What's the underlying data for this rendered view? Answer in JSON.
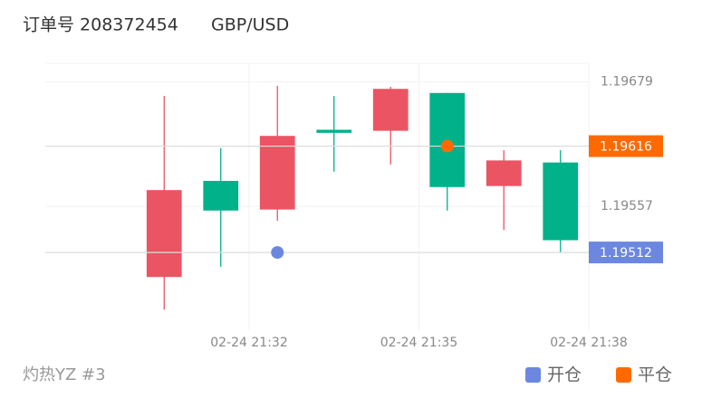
{
  "chart_data": {
    "type": "candlestick",
    "title": "订单号 208372454",
    "subtitle": "GBP/USD",
    "footer": "灼热YZ #3",
    "up_color": "#eb5463",
    "down_color": "#00b18a",
    "x": [
      0,
      1,
      2,
      3,
      4,
      5,
      6,
      7
    ],
    "open": [
      1.19488,
      1.19582,
      1.19554,
      1.19632,
      1.19631,
      1.19668,
      1.19577,
      1.196
    ],
    "close": [
      1.19573,
      1.19553,
      1.19626,
      1.19629,
      1.19672,
      1.19576,
      1.19602,
      1.19524
    ],
    "high": [
      1.19665,
      1.19614,
      1.19675,
      1.19665,
      1.19674,
      1.19668,
      1.19612,
      1.19612
    ],
    "low": [
      1.19456,
      1.19498,
      1.19543,
      1.19591,
      1.19598,
      1.19553,
      1.19534,
      1.19512
    ],
    "xlim": [
      -2.1,
      7.5
    ],
    "xticks": [
      {
        "value": 1.5,
        "label": "02-24 21:32"
      },
      {
        "value": 4.5,
        "label": "02-24 21:35"
      },
      {
        "value": 7.5,
        "label": "02-24 21:38"
      }
    ],
    "ylim": [
      1.19436,
      1.19697
    ],
    "yticks": [
      1.19679,
      1.19557
    ],
    "markers": [
      {
        "name": "开仓",
        "color": "#6b87e0",
        "x": 2,
        "y": 1.19512
      },
      {
        "name": "平仓",
        "color": "#ff6a00",
        "x": 5,
        "y": 1.19616
      }
    ]
  }
}
